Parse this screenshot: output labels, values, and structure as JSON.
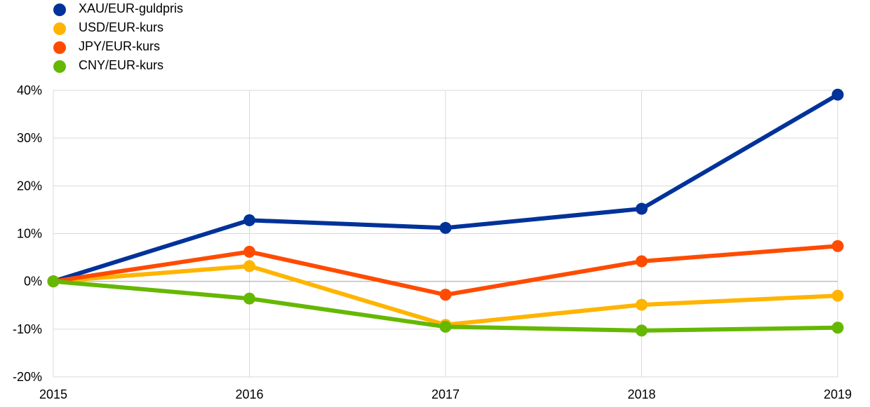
{
  "chart_data": {
    "type": "line",
    "x": [
      "2015",
      "2016",
      "2017",
      "2018",
      "2019"
    ],
    "ylim": [
      -20,
      40
    ],
    "yticks": [
      -20,
      -10,
      0,
      10,
      20,
      30,
      40
    ],
    "ytick_labels": [
      "-20%",
      "-10%",
      "0%",
      "10%",
      "20%",
      "30%",
      "40%"
    ],
    "grid": "vertical and horizontal",
    "legend_position": "top-left",
    "series": [
      {
        "name": "XAU/EUR-guldpris",
        "color": "#003299",
        "values": [
          0,
          12.8,
          11.2,
          15.2,
          39.1
        ]
      },
      {
        "name": "USD/EUR-kurs",
        "color": "#FFB400",
        "values": [
          0,
          3.2,
          -9.1,
          -4.9,
          -3.0
        ]
      },
      {
        "name": "JPY/EUR-kurs",
        "color": "#FF4B00",
        "values": [
          0,
          6.2,
          -2.8,
          4.2,
          7.4
        ]
      },
      {
        "name": "CNY/EUR-kurs",
        "color": "#65B800",
        "values": [
          0,
          -3.6,
          -9.5,
          -10.3,
          -9.7
        ]
      }
    ]
  }
}
